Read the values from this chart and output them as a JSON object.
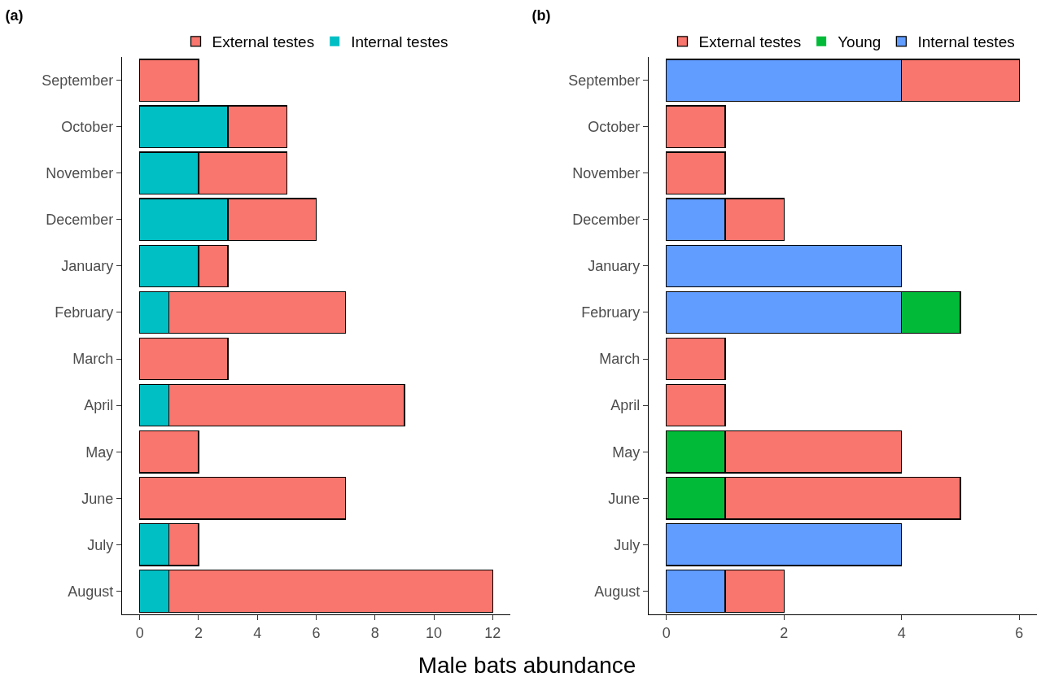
{
  "chart_data": [
    {
      "type": "bar",
      "title": "(a)",
      "xlabel": "Male bats abundance",
      "orientation": "horizontal",
      "stacked": true,
      "legend": "top",
      "grid": false,
      "categories": [
        "September",
        "October",
        "November",
        "December",
        "January",
        "February",
        "March",
        "April",
        "May",
        "June",
        "July",
        "August"
      ],
      "series": [
        {
          "name": "Internal testes",
          "color": "#00bfc4",
          "values": [
            0,
            3,
            2,
            3,
            2,
            1,
            0,
            1,
            0,
            0,
            1,
            1
          ]
        },
        {
          "name": "External testes",
          "color": "#f8766d",
          "values": [
            2,
            2,
            3,
            3,
            1,
            6,
            3,
            8,
            2,
            7,
            1,
            11
          ]
        }
      ],
      "xlim": [
        -0.6,
        12.6
      ],
      "xticks": [
        0,
        2,
        4,
        6,
        8,
        10,
        12
      ]
    },
    {
      "type": "bar",
      "title": "(b)",
      "orientation": "horizontal",
      "stacked": true,
      "legend": "top",
      "grid": false,
      "categories": [
        "September",
        "October",
        "November",
        "December",
        "January",
        "February",
        "March",
        "April",
        "May",
        "June",
        "July",
        "August"
      ],
      "series": [
        {
          "name": "Internal testes",
          "color": "#619cff",
          "values": [
            4,
            0,
            0,
            1,
            4,
            4,
            0,
            0,
            0,
            0,
            4,
            1
          ]
        },
        {
          "name": "Young",
          "color": "#00ba38",
          "values": [
            0,
            0,
            0,
            0,
            0,
            1,
            0,
            0,
            1,
            1,
            0,
            0
          ]
        },
        {
          "name": "External testes",
          "color": "#f8766d",
          "values": [
            2,
            1,
            1,
            1,
            0,
            0,
            1,
            1,
            3,
            4,
            0,
            1
          ]
        }
      ],
      "xlim": [
        -0.3,
        6.3
      ],
      "xticks": [
        0,
        2,
        4,
        6
      ]
    }
  ]
}
